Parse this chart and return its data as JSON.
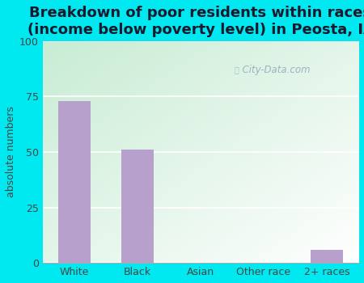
{
  "categories": [
    "White",
    "Black",
    "Asian",
    "Other race",
    "2+ races"
  ],
  "values": [
    73,
    51,
    0,
    0,
    6
  ],
  "bar_color": "#b8a0cc",
  "title": "Breakdown of poor residents within races\n(income below poverty level) in Peosta, IA",
  "ylabel": "absolute numbers",
  "ylim": [
    0,
    100
  ],
  "yticks": [
    0,
    25,
    50,
    75,
    100
  ],
  "outer_bg": "#00e8f0",
  "watermark": "City-Data.com",
  "title_fontsize": 13,
  "ylabel_fontsize": 9,
  "tick_fontsize": 9,
  "bar_width": 0.52
}
